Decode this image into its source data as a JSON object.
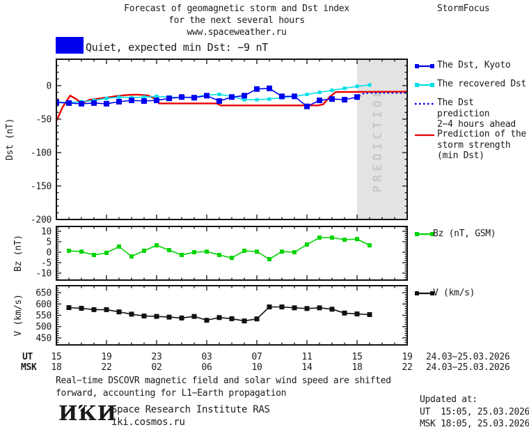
{
  "header": {
    "title_line1": "Forecast of geomagnetic storm and Dst index",
    "title_line2": "for the next several hours",
    "title_line3": "www.spaceweather.ru",
    "brand": "StormFocus"
  },
  "status": {
    "label": "Quiet, expected min Dst: −9 nT",
    "swatch_color": "#0000f0"
  },
  "colors": {
    "blue": "#0000f0",
    "cyan": "#00dfe8",
    "red": "#e80000",
    "green": "#00d400",
    "black": "#111111",
    "frame": "#111111",
    "prediction_region": "#e3e3e3",
    "prediction_text": "#c9c9c9",
    "text": "#1a1a1a"
  },
  "prediction_label": "PREDICTION",
  "legend": {
    "items": [
      {
        "name": "dst-kyoto",
        "lines": [
          "The Dst, Kyoto"
        ],
        "color": "#0000f0",
        "style": "solid-squares"
      },
      {
        "name": "recovered-dst",
        "lines": [
          "The recovered Dst"
        ],
        "color": "#00dfe8",
        "style": "solid-squares"
      },
      {
        "name": "dst-prediction",
        "lines": [
          "The Dst prediction",
          "2−4 hours ahead"
        ],
        "color": "#0000f0",
        "style": "dotted"
      },
      {
        "name": "storm-strength",
        "lines": [
          "Prediction of the",
          "storm strength",
          "(min Dst)"
        ],
        "color": "#e80000",
        "style": "solid"
      }
    ],
    "bz_item": {
      "name": "bz",
      "lines": [
        "Bz (nT, GSM)"
      ],
      "color": "#00d400",
      "style": "solid-squares"
    },
    "v_item": {
      "name": "v",
      "lines": [
        "V (km/s)"
      ],
      "color": "#111111",
      "style": "solid-squares"
    }
  },
  "xaxis": {
    "ut_label": "UT",
    "msk_label": "MSK",
    "ut_hours": [
      "15",
      "19",
      "23",
      "03",
      "07",
      "11",
      "15",
      "19"
    ],
    "msk_hours": [
      "18",
      "22",
      "02",
      "06",
      "10",
      "14",
      "18",
      "22"
    ],
    "date_range": "24.03−25.03.2026",
    "hours_span": 28,
    "major_step_hours": 4,
    "minor_step_hours": 1
  },
  "chart_data": [
    {
      "type": "line",
      "title": "Dst index forecast",
      "ylabel": "Dst (nT)",
      "ylim": [
        -200,
        39.5
      ],
      "yticks": [
        0,
        -50,
        -100,
        -150,
        -200
      ],
      "ytick_minor": 10,
      "grid": false,
      "legend_position": "right",
      "prediction_region_hours": [
        24,
        28
      ],
      "series": [
        {
          "name": "Prediction of the storm strength (min Dst)",
          "color": "#e80000",
          "style": "solid",
          "marker": false,
          "width": 2.4,
          "x": [
            0,
            0.5,
            1.1,
            1.5,
            2,
            2.7,
            3.5,
            4.3,
            5,
            6,
            6.6,
            7.3,
            7.8,
            8.2,
            12.8,
            13.1,
            20.9,
            21.3,
            21.8,
            22.3,
            28
          ],
          "y": [
            -53,
            -32,
            -15,
            -19,
            -26,
            -21,
            -19,
            -17,
            -15,
            -13.5,
            -13.5,
            -14.5,
            -19,
            -26.5,
            -26.5,
            -29.5,
            -29.5,
            -28,
            -17,
            -9.5,
            -9
          ]
        },
        {
          "name": "The recovered Dst",
          "color": "#00dfe8",
          "style": "solid",
          "marker": true,
          "marker_size": 5,
          "width": 1.6,
          "x": [
            0,
            1,
            2,
            3,
            4,
            5,
            6,
            7,
            8,
            9,
            10,
            11,
            12,
            13,
            14,
            15,
            16,
            17,
            18,
            19,
            20,
            21,
            22,
            23,
            24,
            25
          ],
          "y": [
            -25,
            -25,
            -24,
            -22,
            -19,
            -17,
            -18,
            -17,
            -16,
            -17,
            -18,
            -17,
            -14,
            -13,
            -16,
            -21,
            -21,
            -20,
            -18,
            -16,
            -13,
            -10,
            -7,
            -4,
            -1,
            1
          ]
        },
        {
          "name": "The Dst, Kyoto",
          "color": "#0000f0",
          "style": "solid",
          "marker": true,
          "marker_size": 8,
          "width": 1.6,
          "x": [
            0,
            1,
            2,
            3,
            4,
            5,
            6,
            7,
            8,
            9,
            10,
            11,
            12,
            13,
            14,
            15,
            16,
            17,
            18,
            19,
            20,
            21,
            22,
            23,
            24
          ],
          "y": [
            -25,
            -26,
            -27,
            -26,
            -27,
            -24,
            -22,
            -23,
            -22,
            -19,
            -17,
            -18,
            -15,
            -23,
            -17,
            -15,
            -5,
            -4,
            -16,
            -16,
            -31,
            -22,
            -20,
            -21,
            -17
          ]
        },
        {
          "name": "The Dst prediction 2−4 hours ahead",
          "color": "#0000f0",
          "style": "dotted",
          "marker": false,
          "width": 2,
          "x": [
            24.15,
            24.5,
            24.9,
            28
          ],
          "y": [
            -16,
            -12,
            -11,
            -11
          ]
        }
      ]
    },
    {
      "type": "line",
      "title": "Bz component",
      "ylabel": "Bz (nT)",
      "ylim": [
        -13.33,
        12.33
      ],
      "yticks": [
        10,
        5,
        0,
        -5,
        -10
      ],
      "ytick_minor": 1,
      "grid": false,
      "series": [
        {
          "name": "Bz (nT, GSM)",
          "color": "#00d400",
          "style": "solid",
          "marker": true,
          "marker_size": 6,
          "width": 1.6,
          "x": [
            1,
            2,
            3,
            4,
            5,
            6,
            7,
            8,
            9,
            10,
            11,
            12,
            13,
            14,
            15,
            16,
            17,
            18,
            19,
            20,
            21,
            22,
            23,
            24,
            25
          ],
          "y": [
            0.7,
            0.3,
            -1.3,
            -0.3,
            2.7,
            -2,
            0.7,
            3.3,
            1,
            -1.3,
            0,
            0.3,
            -1.3,
            -2.7,
            0.7,
            0.3,
            -3.3,
            0.3,
            0,
            3.7,
            7,
            7,
            6,
            6.3,
            3.3
          ]
        }
      ]
    },
    {
      "type": "line",
      "title": "Solar wind speed",
      "ylabel": "V (km/s)",
      "ylim": [
        419,
        681
      ],
      "yticks": [
        650,
        600,
        550,
        500,
        450
      ],
      "ytick_minor": 10,
      "grid": false,
      "series": [
        {
          "name": "V (km/s)",
          "color": "#111111",
          "style": "solid",
          "marker": true,
          "marker_size": 7,
          "width": 1.6,
          "x": [
            1,
            2,
            3,
            4,
            5,
            6,
            7,
            8,
            9,
            10,
            11,
            12,
            13,
            14,
            15,
            16,
            17,
            18,
            19,
            20,
            21,
            22,
            23,
            24,
            25
          ],
          "y": [
            584,
            581,
            575,
            575,
            565,
            555,
            547,
            545,
            542,
            538,
            545,
            528,
            540,
            535,
            525,
            534,
            587,
            587,
            583,
            580,
            583,
            577,
            560,
            556,
            553
          ]
        }
      ]
    }
  ],
  "footer": {
    "note_line1": "Real−time DSCOVR magnetic field and solar wind speed are shifted",
    "note_line2": "forward, accounting for L1−Earth propagation",
    "logo": "ИКИ",
    "institute": "Space Research Institute RAS",
    "site": "iki.cosmos.ru",
    "updated_label": "Updated at:",
    "updated_ut": "UT  15:05, 25.03.2026",
    "updated_msk": "MSK 18:05, 25.03.2026"
  }
}
